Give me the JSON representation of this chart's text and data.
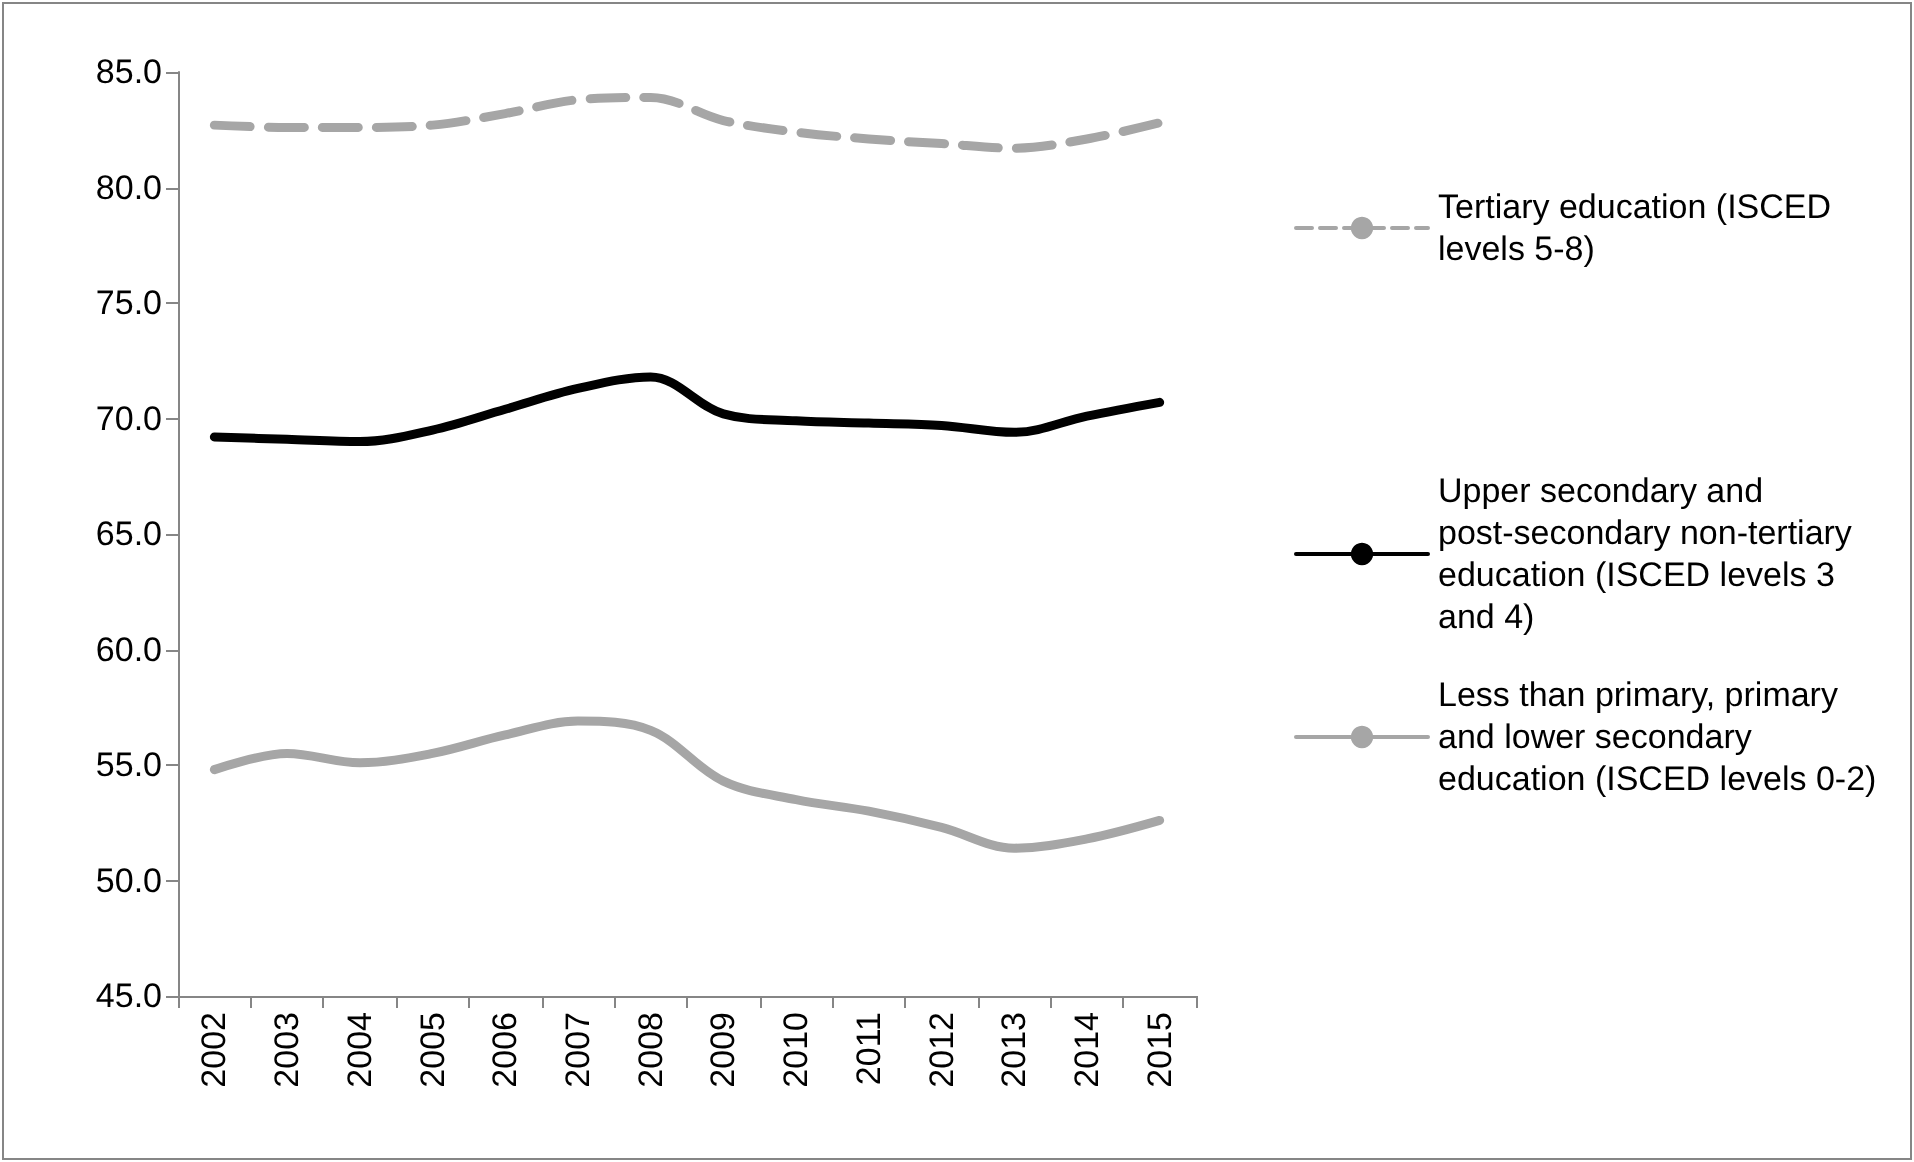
{
  "chart_data": {
    "type": "line",
    "categories": [
      "2002",
      "2003",
      "2004",
      "2005",
      "2006",
      "2007",
      "2008",
      "2009",
      "2010",
      "2011",
      "2012",
      "2013",
      "2014",
      "2015"
    ],
    "ylim": [
      45,
      85
    ],
    "yticks": [
      {
        "value": 45,
        "label": "45.0"
      },
      {
        "value": 50,
        "label": "50.0"
      },
      {
        "value": 55,
        "label": "55.0"
      },
      {
        "value": 60,
        "label": "60.0"
      },
      {
        "value": 65,
        "label": "65.0"
      },
      {
        "value": 70,
        "label": "70.0"
      },
      {
        "value": 75,
        "label": "75.0"
      },
      {
        "value": 80,
        "label": "80.0"
      },
      {
        "value": 85,
        "label": "85.0"
      }
    ],
    "grid": false,
    "legend": "right",
    "marker": "none",
    "series": [
      {
        "name": "Tertiary education (ISCED levels 5-8)",
        "color": "#a6a6a6",
        "line_style": "dashed",
        "values": [
          82.7,
          82.6,
          82.6,
          82.7,
          83.2,
          83.8,
          83.9,
          82.9,
          82.4,
          82.1,
          81.9,
          81.7,
          82.1,
          82.8
        ]
      },
      {
        "name": "Upper secondary and post-secondary non-tertiary education (ISCED levels 3 and 4)",
        "color": "#000000",
        "line_style": "solid",
        "values": [
          69.2,
          69.1,
          69.0,
          69.5,
          70.4,
          71.3,
          71.8,
          70.2,
          69.9,
          69.8,
          69.7,
          69.4,
          70.1,
          70.7
        ]
      },
      {
        "name": "Less than primary, primary and lower secondary education (ISCED levels 0-2)",
        "color": "#a6a6a6",
        "line_style": "solid",
        "values": [
          54.8,
          55.5,
          55.1,
          55.5,
          56.3,
          56.9,
          56.5,
          54.3,
          53.5,
          53.0,
          52.3,
          51.4,
          51.8,
          52.6
        ]
      }
    ]
  }
}
